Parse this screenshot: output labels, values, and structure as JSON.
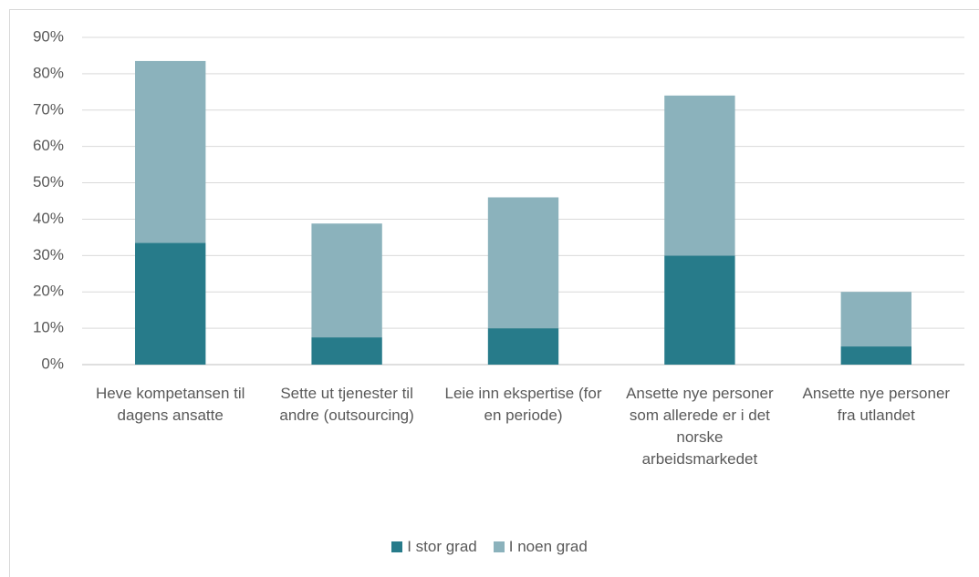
{
  "chart_data": {
    "type": "stacked_bar",
    "categories": [
      "Heve kompetansen til dagens ansatte",
      "Sette ut tjenester til andre (outsourcing)",
      "Leie inn ekspertise (for en periode)",
      "Ansette nye personer som allerede er i det norske arbeidsmarkedet",
      "Ansette nye personer fra utlandet"
    ],
    "series": [
      {
        "name": "I stor grad",
        "color": "#277b8a",
        "values": [
          33.5,
          7.5,
          10,
          30,
          5
        ]
      },
      {
        "name": "I noen grad",
        "color": "#8bb2bc",
        "values": [
          50,
          31.3,
          36,
          44,
          15
        ]
      }
    ],
    "ylim": [
      0,
      90
    ],
    "yticks": [
      {
        "value": 0,
        "label": "0%"
      },
      {
        "value": 10,
        "label": "10%"
      },
      {
        "value": 20,
        "label": "20%"
      },
      {
        "value": 30,
        "label": "30%"
      },
      {
        "value": 40,
        "label": "40%"
      },
      {
        "value": 50,
        "label": "50%"
      },
      {
        "value": 60,
        "label": "60%"
      },
      {
        "value": 70,
        "label": "70%"
      },
      {
        "value": 80,
        "label": "80%"
      },
      {
        "value": 90,
        "label": "90%"
      }
    ],
    "grid": true,
    "legend": "bottom"
  }
}
